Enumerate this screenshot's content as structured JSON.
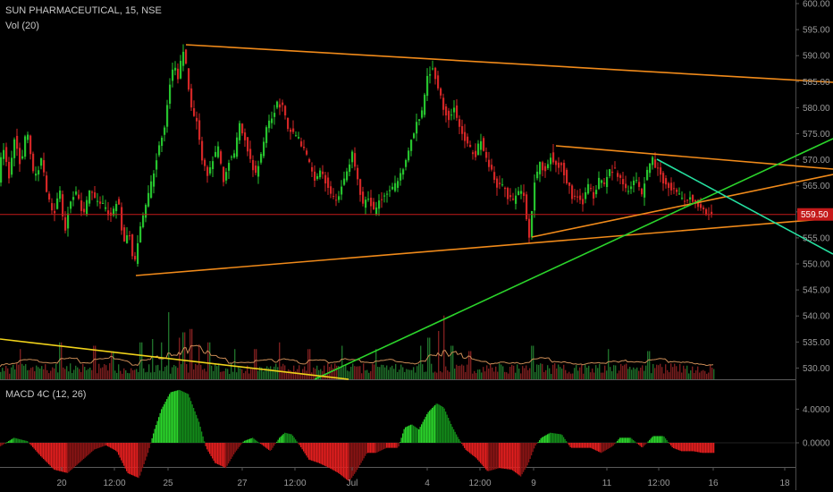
{
  "header": {
    "symbol_title": "SUN PHARMACEUTICAL, 15, NSE",
    "volume_label": "Vol (20)",
    "macd_label": "MACD 4C (12, 26)"
  },
  "colors": {
    "background": "#000000",
    "up": "#26c32e",
    "down": "#d32626",
    "trendline_orange": "#f08a1a",
    "trendline_green": "#2bd42b",
    "trendline_yellow": "#f0d21a",
    "trendline_cyan": "#25e0a0",
    "last_price_line": "#c41a1a",
    "volume_ma": "#c98a55",
    "gridline": "#1a1a1a"
  },
  "chart_data": [
    {
      "type": "candlestick",
      "title": "SUN PHARMACEUTICAL, 15, NSE",
      "x_tick_labels": [
        "20",
        "12:00",
        "25",
        "27",
        "12:00",
        "Jul",
        "4",
        "12:00",
        "9",
        "11",
        "12:00",
        "16",
        "18"
      ],
      "y_tick_labels": [
        "600.00",
        "595.00",
        "590.00",
        "585.00",
        "580.00",
        "575.00",
        "570.00",
        "565.00",
        "560.00",
        "555.00",
        "550.00",
        "545.00",
        "540.00",
        "535.00",
        "530.00"
      ],
      "ylim": [
        528,
        600
      ],
      "last_price": "559.50",
      "price_path": [
        [
          0,
          566
        ],
        [
          5,
          573
        ],
        [
          12,
          567
        ],
        [
          18,
          574
        ],
        [
          25,
          569
        ],
        [
          32,
          576
        ],
        [
          40,
          566
        ],
        [
          48,
          570
        ],
        [
          55,
          563
        ],
        [
          62,
          559
        ],
        [
          68,
          565
        ],
        [
          74,
          556
        ],
        [
          80,
          562
        ],
        [
          88,
          564
        ],
        [
          95,
          559
        ],
        [
          102,
          564
        ],
        [
          110,
          562
        ],
        [
          118,
          561
        ],
        [
          126,
          559
        ],
        [
          134,
          563
        ],
        [
          140,
          554
        ],
        [
          146,
          557
        ],
        [
          152,
          549
        ],
        [
          158,
          557
        ],
        [
          165,
          561
        ],
        [
          172,
          566
        ],
        [
          180,
          573
        ],
        [
          186,
          576
        ],
        [
          192,
          585
        ],
        [
          197,
          588
        ],
        [
          202,
          585
        ],
        [
          206,
          592
        ],
        [
          210,
          588
        ],
        [
          216,
          580
        ],
        [
          222,
          577
        ],
        [
          228,
          570
        ],
        [
          234,
          567
        ],
        [
          240,
          570
        ],
        [
          246,
          572
        ],
        [
          252,
          566
        ],
        [
          258,
          570
        ],
        [
          264,
          571
        ],
        [
          270,
          577
        ],
        [
          276,
          574
        ],
        [
          282,
          570
        ],
        [
          288,
          567
        ],
        [
          294,
          571
        ],
        [
          300,
          576
        ],
        [
          306,
          578
        ],
        [
          312,
          581
        ],
        [
          318,
          580
        ],
        [
          324,
          576
        ],
        [
          330,
          575
        ],
        [
          336,
          574
        ],
        [
          342,
          572
        ],
        [
          348,
          569
        ],
        [
          354,
          566
        ],
        [
          360,
          568
        ],
        [
          366,
          566
        ],
        [
          372,
          563
        ],
        [
          378,
          562
        ],
        [
          384,
          565
        ],
        [
          390,
          568
        ],
        [
          396,
          571
        ],
        [
          402,
          566
        ],
        [
          408,
          561
        ],
        [
          414,
          563
        ],
        [
          420,
          560
        ],
        [
          426,
          562
        ],
        [
          432,
          563
        ],
        [
          438,
          564
        ],
        [
          444,
          565
        ],
        [
          450,
          567
        ],
        [
          456,
          570
        ],
        [
          462,
          574
        ],
        [
          468,
          577
        ],
        [
          474,
          579
        ],
        [
          480,
          586
        ],
        [
          486,
          588
        ],
        [
          492,
          584
        ],
        [
          498,
          580
        ],
        [
          504,
          578
        ],
        [
          510,
          580
        ],
        [
          516,
          576
        ],
        [
          522,
          574
        ],
        [
          528,
          572
        ],
        [
          534,
          571
        ],
        [
          540,
          574
        ],
        [
          546,
          570
        ],
        [
          552,
          568
        ],
        [
          558,
          565
        ],
        [
          564,
          565
        ],
        [
          570,
          563
        ],
        [
          576,
          562
        ],
        [
          582,
          564
        ],
        [
          588,
          563
        ],
        [
          594,
          555
        ],
        [
          600,
          566
        ],
        [
          606,
          569
        ],
        [
          612,
          568
        ],
        [
          618,
          571
        ],
        [
          624,
          569
        ],
        [
          630,
          569
        ],
        [
          636,
          566
        ],
        [
          642,
          563
        ],
        [
          648,
          563
        ],
        [
          654,
          562
        ],
        [
          660,
          565
        ],
        [
          666,
          563
        ],
        [
          672,
          566
        ],
        [
          678,
          565
        ],
        [
          684,
          568
        ],
        [
          690,
          568
        ],
        [
          696,
          566
        ],
        [
          702,
          564
        ],
        [
          708,
          565
        ],
        [
          714,
          566
        ],
        [
          720,
          563
        ],
        [
          726,
          568
        ],
        [
          732,
          570
        ],
        [
          738,
          568
        ],
        [
          744,
          566
        ],
        [
          750,
          565
        ],
        [
          756,
          564
        ],
        [
          762,
          563
        ],
        [
          768,
          562
        ],
        [
          774,
          563
        ],
        [
          780,
          562
        ],
        [
          786,
          561
        ],
        [
          792,
          560
        ],
        [
          798,
          559.5
        ]
      ]
    },
    {
      "type": "bar",
      "title": "Vol (20)",
      "spikes": [
        [
          22,
          0.45
        ],
        [
          67,
          0.55
        ],
        [
          105,
          0.5
        ],
        [
          125,
          0.42
        ],
        [
          157,
          0.55
        ],
        [
          170,
          0.6
        ],
        [
          180,
          0.55
        ],
        [
          188,
          1.0
        ],
        [
          200,
          0.62
        ],
        [
          205,
          0.7
        ],
        [
          213,
          0.75
        ],
        [
          222,
          0.52
        ],
        [
          233,
          0.55
        ],
        [
          262,
          0.45
        ],
        [
          285,
          0.45
        ],
        [
          312,
          0.55
        ],
        [
          345,
          0.45
        ],
        [
          382,
          0.5
        ],
        [
          420,
          0.45
        ],
        [
          470,
          0.5
        ],
        [
          479,
          0.62
        ],
        [
          490,
          0.72
        ],
        [
          496,
          0.95
        ],
        [
          505,
          0.5
        ],
        [
          525,
          0.42
        ],
        [
          595,
          0.5
        ],
        [
          680,
          0.45
        ],
        [
          725,
          0.42
        ]
      ]
    },
    {
      "type": "histogram",
      "title": "MACD 4C (12, 26)",
      "y_tick_labels": [
        "4.0000",
        "0.0000"
      ],
      "ylim": [
        -5.5,
        6
      ],
      "macd_path": [
        [
          0,
          -0.4
        ],
        [
          15,
          0.6
        ],
        [
          30,
          0.2
        ],
        [
          45,
          -1.6
        ],
        [
          60,
          -3.2
        ],
        [
          75,
          -3.6
        ],
        [
          90,
          -2.2
        ],
        [
          105,
          -0.8
        ],
        [
          118,
          -0.3
        ],
        [
          130,
          -1.0
        ],
        [
          142,
          -3.6
        ],
        [
          155,
          -4.2
        ],
        [
          165,
          -1.2
        ],
        [
          172,
          1.5
        ],
        [
          180,
          4.0
        ],
        [
          190,
          6.0
        ],
        [
          200,
          6.3
        ],
        [
          210,
          5.8
        ],
        [
          222,
          2.5
        ],
        [
          230,
          -0.6
        ],
        [
          240,
          -2.4
        ],
        [
          252,
          -3.0
        ],
        [
          262,
          -1.2
        ],
        [
          272,
          0.2
        ],
        [
          282,
          0.6
        ],
        [
          292,
          -0.2
        ],
        [
          302,
          -1.0
        ],
        [
          312,
          0.6
        ],
        [
          318,
          1.2
        ],
        [
          326,
          1.0
        ],
        [
          334,
          -0.2
        ],
        [
          345,
          -2.0
        ],
        [
          356,
          -2.4
        ],
        [
          368,
          -3.0
        ],
        [
          378,
          -3.6
        ],
        [
          390,
          -4.6
        ],
        [
          398,
          -3.4
        ],
        [
          410,
          -1.2
        ],
        [
          420,
          -1.2
        ],
        [
          432,
          -0.6
        ],
        [
          445,
          -0.6
        ],
        [
          452,
          1.8
        ],
        [
          460,
          2.2
        ],
        [
          468,
          1.6
        ],
        [
          478,
          3.6
        ],
        [
          488,
          4.7
        ],
        [
          496,
          4.2
        ],
        [
          505,
          2.0
        ],
        [
          512,
          0.6
        ],
        [
          520,
          -0.8
        ],
        [
          532,
          -1.8
        ],
        [
          545,
          -3.4
        ],
        [
          558,
          -3.0
        ],
        [
          572,
          -3.2
        ],
        [
          582,
          -4.0
        ],
        [
          590,
          -2.6
        ],
        [
          598,
          -0.4
        ],
        [
          605,
          0.6
        ],
        [
          615,
          1.2
        ],
        [
          628,
          1.0
        ],
        [
          638,
          -0.6
        ],
        [
          650,
          -0.6
        ],
        [
          660,
          -0.6
        ],
        [
          672,
          -1.2
        ],
        [
          685,
          -0.4
        ],
        [
          693,
          0.6
        ],
        [
          705,
          0.6
        ],
        [
          718,
          -0.6
        ],
        [
          730,
          0.8
        ],
        [
          742,
          0.8
        ],
        [
          752,
          -0.6
        ],
        [
          762,
          -1.0
        ],
        [
          775,
          -1.0
        ],
        [
          785,
          -1.2
        ],
        [
          798,
          -1.2
        ]
      ]
    }
  ]
}
